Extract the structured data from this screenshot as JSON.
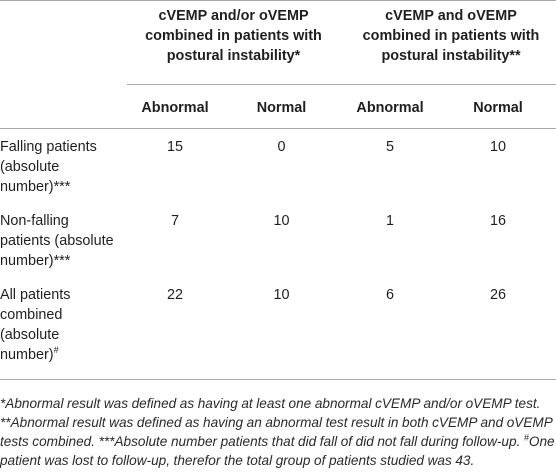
{
  "table": {
    "group_headers": [
      "cVEMP and/or oVEMP combined in patients with postural instability*",
      "cVEMP and oVEMP combined in patients with postural instability**"
    ],
    "sub_headers": [
      "Abnormal",
      "Normal",
      "Abnormal",
      "Normal"
    ],
    "rows": [
      {
        "label": "Falling patients (absolute number)***",
        "label_sup": "",
        "values": [
          "15",
          "0",
          "5",
          "10"
        ]
      },
      {
        "label": "Non-falling patients (absolute number)***",
        "label_sup": "",
        "values": [
          "7",
          "10",
          "1",
          "16"
        ]
      },
      {
        "label": "All patients combined (absolute number)",
        "label_sup": "#",
        "values": [
          "22",
          "10",
          "6",
          "26"
        ]
      }
    ]
  },
  "footnote": {
    "n1": "*Abnormal result was defined as having at least one abnormal cVEMP and/or oVEMP test.",
    "n2": "**Abnormal result was defined as having an abnormal test result in both cVEMP and oVEMP tests combined.",
    "n3": "***Absolute number patients that did fall of did not fall during follow-up.",
    "n4_sup": "#",
    "n4": "One patient was lost to follow-up, therefor the total group of patients studied was 43."
  }
}
